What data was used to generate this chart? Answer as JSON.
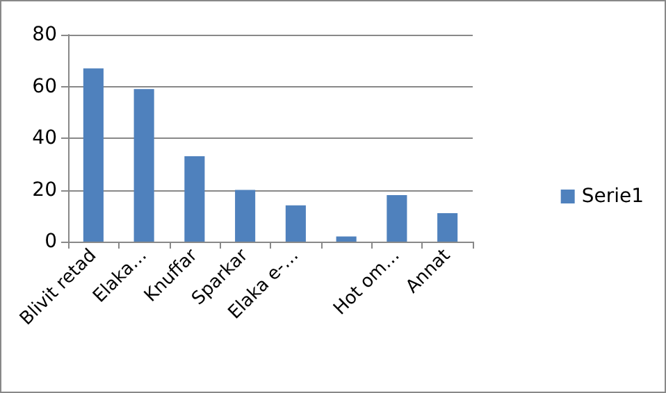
{
  "chart_data": {
    "type": "bar",
    "categories": [
      "Blivit retad",
      "Elaka…",
      "Knuffar",
      "Sparkar",
      "Elaka e-…",
      null,
      "Hot om…",
      "Annat"
    ],
    "series": [
      {
        "name": "Serie1",
        "color": "#4f81bd",
        "values": [
          67,
          59,
          33,
          20,
          14,
          2,
          18,
          11
        ]
      }
    ],
    "ylim": [
      0,
      80
    ],
    "yticks": [
      0,
      20,
      40,
      60,
      80
    ],
    "grid": "y",
    "legend": "right"
  }
}
